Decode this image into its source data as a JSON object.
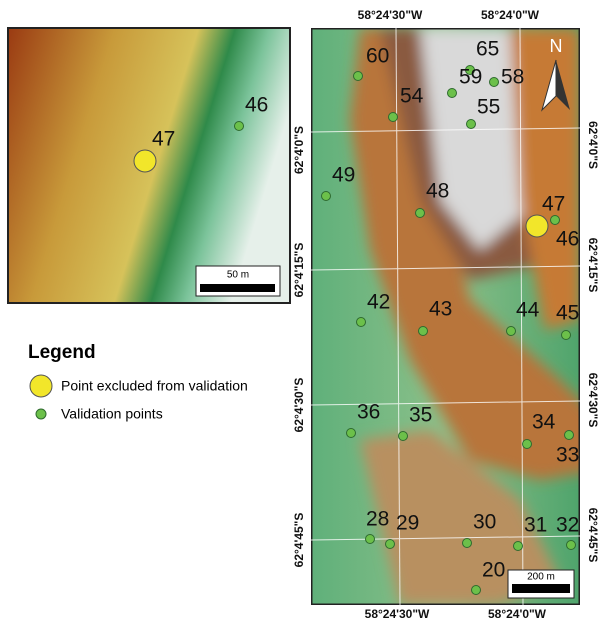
{
  "inset": {
    "points": [
      "47",
      "46"
    ],
    "scale_label": "50 m"
  },
  "map": {
    "top_labels": [
      "58°24'30\"W",
      "58°24'0\"W"
    ],
    "bottom_labels": [
      "58°24'30\"W",
      "58°24'0\"W"
    ],
    "left_labels": [
      "62°4'0\"S",
      "62°4'15\"S",
      "62°4'30\"S",
      "62°4'45\"S"
    ],
    "right_labels": [
      "62°4'0\"S",
      "62°4'15\"S",
      "62°4'30\"S",
      "62°4'45\"S"
    ],
    "north": "N",
    "points": [
      "60",
      "65",
      "59",
      "58",
      "54",
      "55",
      "49",
      "48",
      "47",
      "46",
      "42",
      "43",
      "44",
      "45",
      "36",
      "35",
      "34",
      "33",
      "28",
      "29",
      "30",
      "31",
      "32",
      "20"
    ],
    "scale_label": "200 m"
  },
  "legend": {
    "title": "Legend",
    "items": [
      "Point excluded from validation",
      "Validation points"
    ]
  }
}
